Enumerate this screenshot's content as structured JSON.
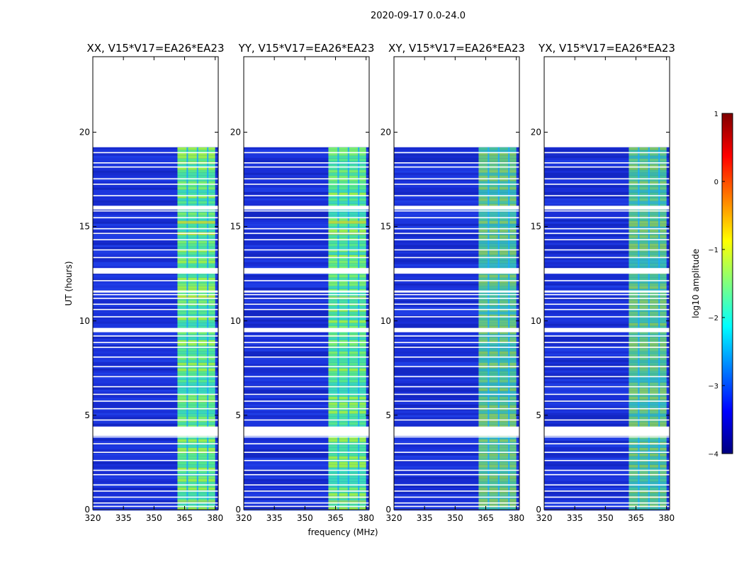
{
  "chart_data": {
    "type": "heatmap",
    "suptitle": "2020-09-17 0.0-24.0",
    "panels": [
      {
        "title": "XX, V15*V17=EA26*EA23",
        "pol": "XX"
      },
      {
        "title": "YY, V15*V17=EA26*EA23",
        "pol": "YY"
      },
      {
        "title": "XY, V15*V17=EA26*EA23",
        "pol": "XY"
      },
      {
        "title": "YX, V15*V17=EA26*EA23",
        "pol": "YX"
      }
    ],
    "xlabel": "frequency (MHz)",
    "ylabel": "UT (hours)",
    "xlim": [
      320,
      381.5
    ],
    "ylim": [
      0,
      24
    ],
    "xticks": [
      320,
      335,
      350,
      365,
      380
    ],
    "yticks": [
      0,
      5,
      10,
      15,
      20
    ],
    "data_end_hour": 19.2,
    "flagged_hours": [
      [
        3.9,
        4.4
      ],
      [
        12.5,
        12.8
      ],
      [
        15.9,
        16.1
      ],
      [
        11.5,
        11.6
      ],
      [
        9.4,
        9.6
      ]
    ],
    "bright_band_mhz": [
      361.5,
      380
    ],
    "channel_gaps_mhz": [
      366,
      371,
      376
    ],
    "colorbar": {
      "label": "log10 amplitude",
      "range": [
        -4,
        1
      ],
      "ticks": [
        -4,
        -3,
        -2,
        -1,
        0,
        1
      ],
      "tick_labels": [
        "−4",
        "−3",
        "−2",
        "−1",
        "0",
        "1"
      ],
      "colormap": [
        "#00007f",
        "#0000ff",
        "#007fff",
        "#00ffff",
        "#7fff7f",
        "#ffff00",
        "#ff7f00",
        "#ff0000",
        "#7f0000"
      ]
    },
    "colors": {
      "background_level": "#1a30d8",
      "band_level": "#58f088"
    }
  }
}
